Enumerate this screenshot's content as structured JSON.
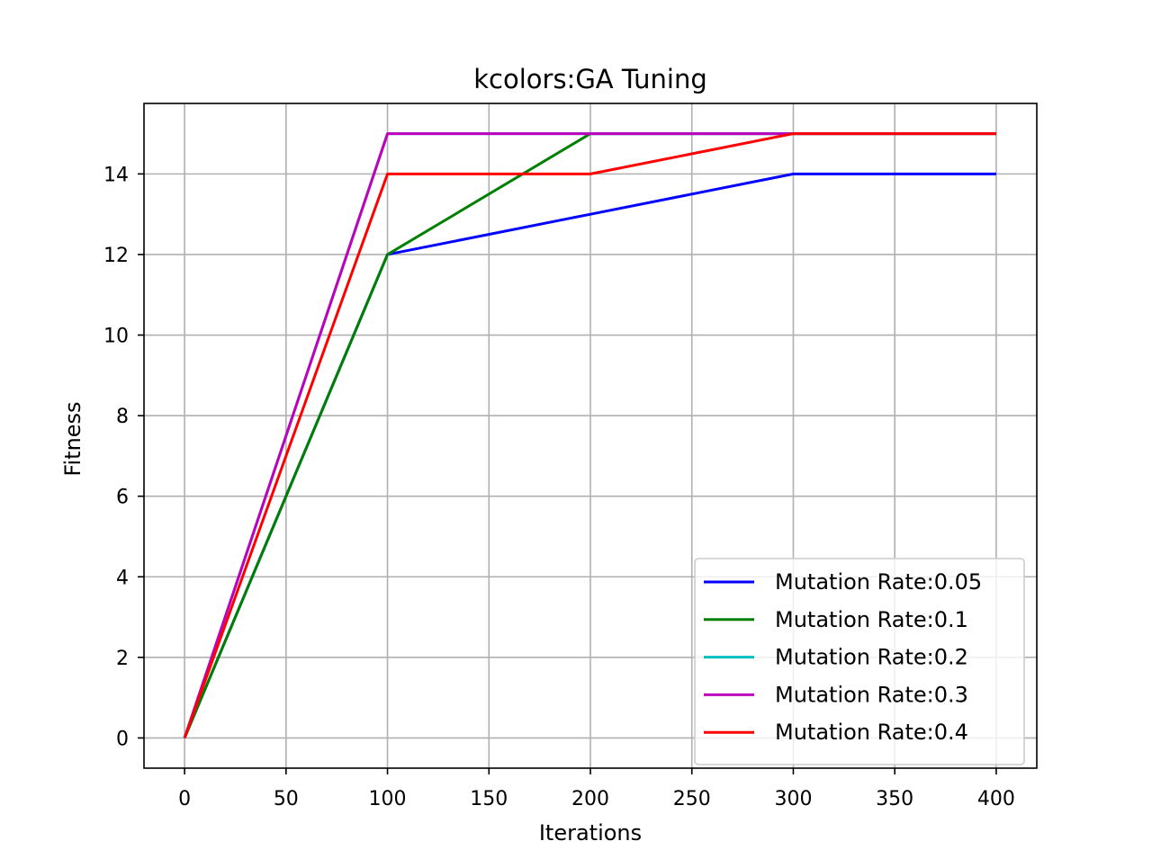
{
  "chart_data": {
    "type": "line",
    "title": "kcolors:GA Tuning",
    "xlabel": "Iterations",
    "ylabel": "Fitness",
    "x": [
      0,
      100,
      200,
      300,
      400
    ],
    "xlim": [
      -20,
      420
    ],
    "ylim": [
      -0.75,
      15.75
    ],
    "xticks": [
      0,
      50,
      100,
      150,
      200,
      250,
      300,
      350,
      400
    ],
    "yticks": [
      0,
      2,
      4,
      6,
      8,
      10,
      12,
      14
    ],
    "grid": true,
    "legend_position": "lower-right",
    "series": [
      {
        "name": "Mutation Rate:0.05",
        "color": "#0000ff",
        "values": [
          0,
          12,
          13,
          14,
          14
        ]
      },
      {
        "name": "Mutation Rate:0.1",
        "color": "#008000",
        "values": [
          0,
          12,
          15,
          15,
          15
        ]
      },
      {
        "name": "Mutation Rate:0.2",
        "color": "#00bfbf",
        "values": [
          0,
          15,
          15,
          15,
          15
        ]
      },
      {
        "name": "Mutation Rate:0.3",
        "color": "#bf00bf",
        "values": [
          0,
          15,
          15,
          15,
          15
        ]
      },
      {
        "name": "Mutation Rate:0.4",
        "color": "#ff0000",
        "values": [
          0,
          14,
          14,
          15,
          15
        ]
      }
    ]
  }
}
